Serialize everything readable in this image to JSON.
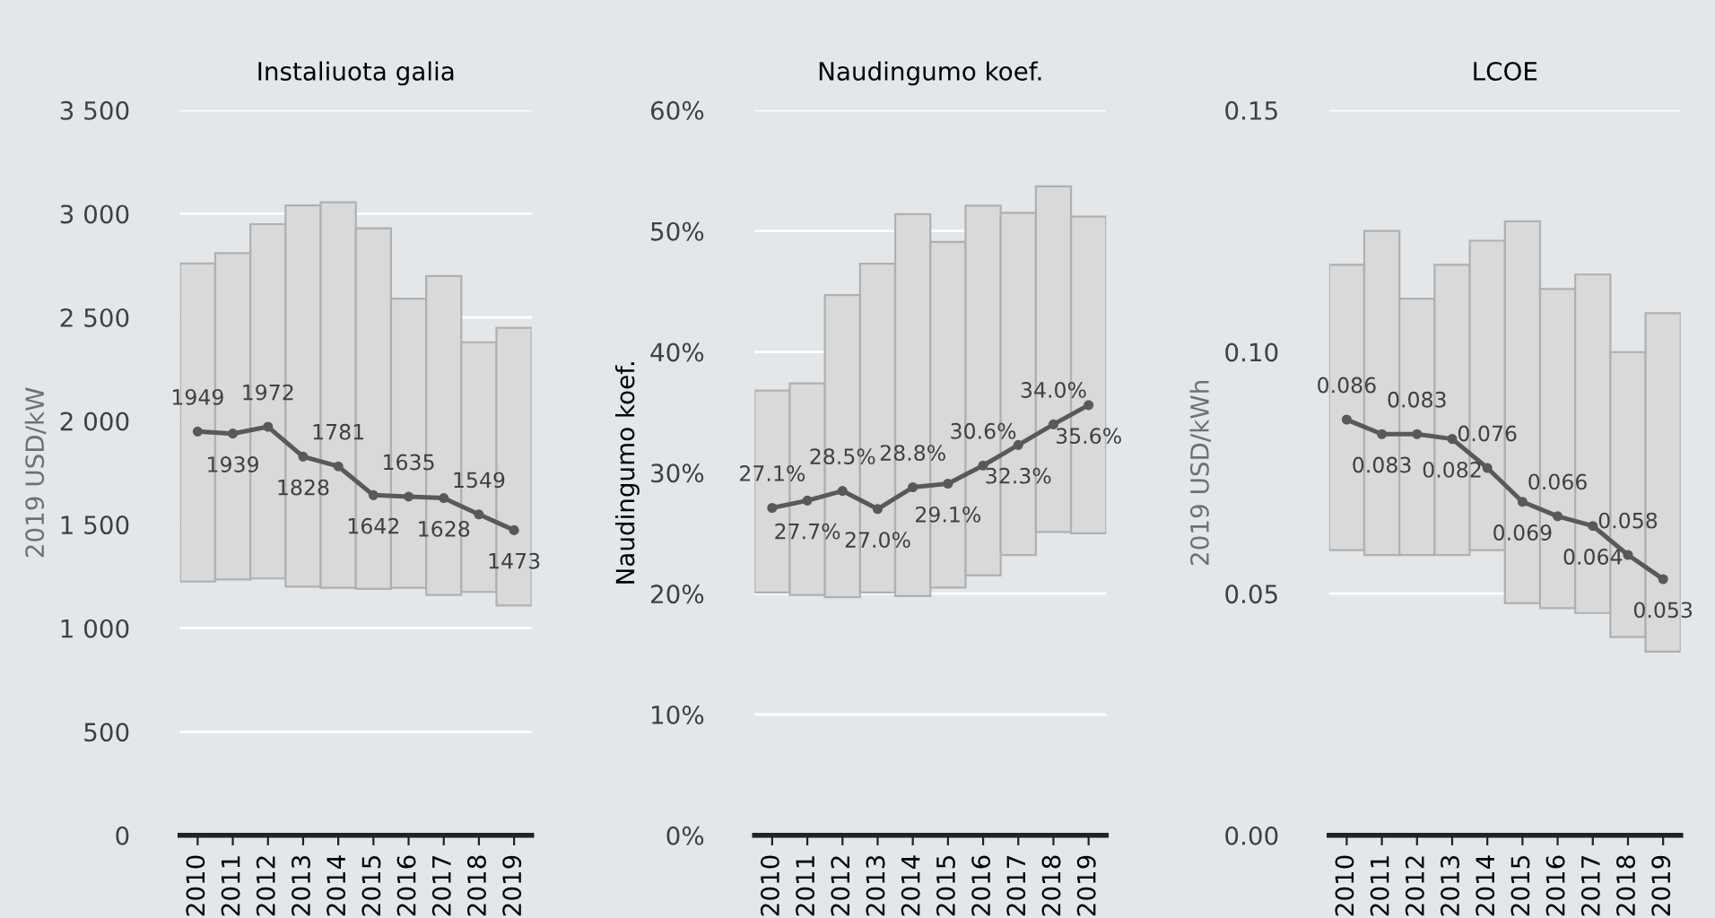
{
  "chart_data": [
    {
      "type": "bar",
      "title": "Instaliuota galia",
      "ylabel": "2019 USD/kW",
      "categories": [
        "2010",
        "2011",
        "2012",
        "2013",
        "2014",
        "2015",
        "2016",
        "2017",
        "2018",
        "2019"
      ],
      "ylim": [
        0,
        3500
      ],
      "yticks": [
        0,
        500,
        {
          "value": 1000,
          "label": "1 000"
        },
        {
          "value": 1500,
          "label": "1 500"
        },
        {
          "value": 2000,
          "label": "2 000"
        },
        {
          "value": 2500,
          "label": "2 500"
        },
        {
          "value": 3000,
          "label": "3 000"
        },
        {
          "value": 3500,
          "label": "3 500"
        }
      ],
      "grid": "y",
      "marker": "circle",
      "series": [
        {
          "color": "#d9d9d9",
          "base": [
            1225,
            1235,
            1240,
            1200,
            1195,
            1190,
            1195,
            1160,
            1175,
            1110
          ],
          "values": [
            1535,
            1575,
            1710,
            1840,
            1860,
            1740,
            1395,
            1540,
            1205,
            1340
          ]
        },
        {
          "type": "line",
          "color": "#595959",
          "values": [
            1949,
            1939,
            1972,
            1828,
            1781,
            1642,
            1635,
            1628,
            1549,
            1473
          ],
          "value_labels": [
            "1949",
            "1939",
            "1972",
            "1828",
            "1781",
            "1642",
            "1635",
            "1628",
            "1549",
            "1473"
          ]
        }
      ]
    },
    {
      "type": "bar",
      "title": "Naudingumo koef.",
      "ylabel": "Naudingumo koef.",
      "categories": [
        "2010",
        "2011",
        "2012",
        "2013",
        "2014",
        "2015",
        "2016",
        "2017",
        "2018",
        "2019"
      ],
      "ylim": [
        0,
        60
      ],
      "yticks": [
        {
          "value": 0,
          "label": "0%"
        },
        {
          "value": 10,
          "label": "10%"
        },
        {
          "value": 20,
          "label": "20%"
        },
        {
          "value": 30,
          "label": "30%"
        },
        {
          "value": 40,
          "label": "40%"
        },
        {
          "value": 50,
          "label": "50%"
        },
        {
          "value": 60,
          "label": "60%"
        }
      ],
      "grid": "y",
      "marker": "circle",
      "series": [
        {
          "color": "#d9d9d9",
          "base": [
            20.1,
            19.9,
            19.7,
            20.1,
            19.8,
            20.5,
            21.5,
            23.2,
            25.1,
            25.0
          ],
          "values": [
            16.7,
            17.5,
            25.0,
            27.2,
            31.6,
            28.6,
            30.6,
            28.3,
            28.6,
            26.2
          ]
        },
        {
          "type": "line",
          "color": "#595959",
          "values": [
            27.1,
            27.7,
            28.5,
            27.0,
            28.8,
            29.1,
            30.6,
            32.3,
            34.0,
            35.6
          ],
          "value_labels": [
            "27.1%",
            "27.7%",
            "28.5%",
            "27.0%",
            "28.8%",
            "29.1%",
            "30.6%",
            "32.3%",
            "34.0%",
            "35.6%"
          ]
        }
      ]
    },
    {
      "type": "bar",
      "title": "LCOE",
      "ylabel": "2019 USD/kWh",
      "categories": [
        "2010",
        "2011",
        "2012",
        "2013",
        "2014",
        "2015",
        "2016",
        "2017",
        "2018",
        "2019"
      ],
      "ylim": [
        0,
        0.15
      ],
      "yticks": [
        {
          "value": 0,
          "label": "0.00"
        },
        {
          "value": 0.05,
          "label": "0.05"
        },
        {
          "value": 0.1,
          "label": "0.10"
        },
        {
          "value": 0.15,
          "label": "0.15"
        }
      ],
      "grid": "y",
      "marker": "circle",
      "series": [
        {
          "color": "#d9d9d9",
          "base": [
            0.059,
            0.058,
            0.058,
            0.058,
            0.059,
            0.048,
            0.047,
            0.046,
            0.041,
            0.038
          ],
          "values": [
            0.059,
            0.067,
            0.053,
            0.06,
            0.064,
            0.079,
            0.066,
            0.07,
            0.059,
            0.07
          ]
        },
        {
          "type": "line",
          "color": "#595959",
          "values": [
            0.086,
            0.083,
            0.083,
            0.082,
            0.076,
            0.069,
            0.066,
            0.064,
            0.058,
            0.053
          ],
          "value_labels": [
            "0.086",
            "0.083",
            "0.083",
            "0.082",
            "0.076",
            "0.069",
            "0.066",
            "0.064",
            "0.058",
            "0.053"
          ]
        }
      ]
    }
  ]
}
